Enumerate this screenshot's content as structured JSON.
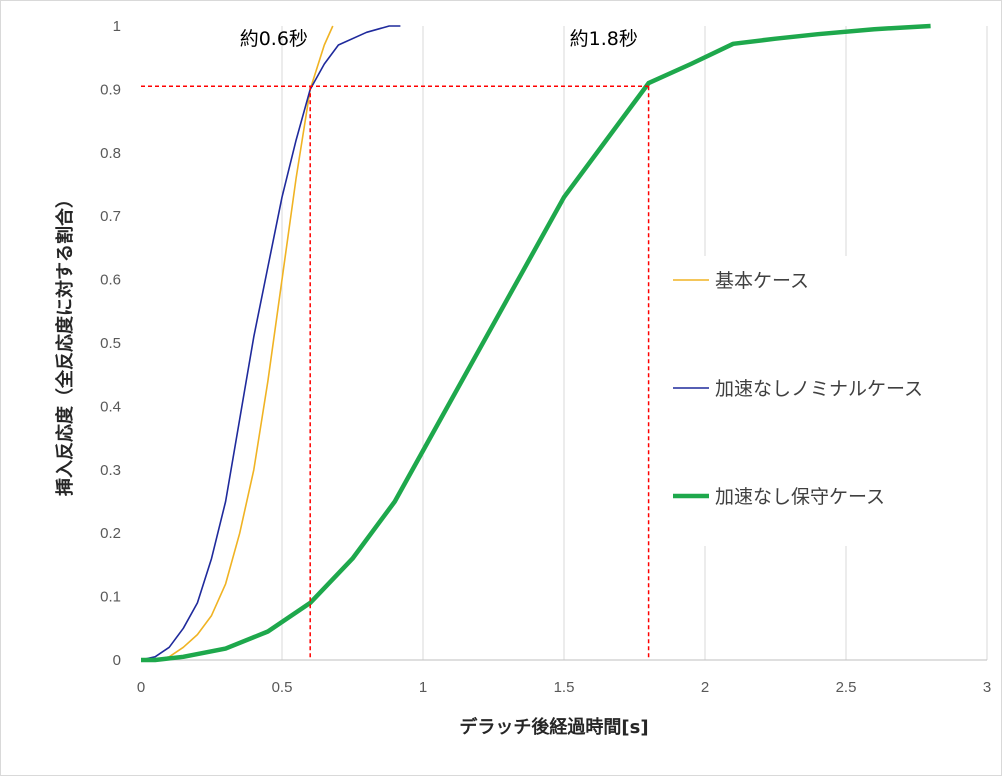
{
  "chart_data": {
    "type": "line",
    "xlabel": "デラッチ後経過時間[s]",
    "ylabel": "挿入反応度（全反応度に対する割合）",
    "xlim": [
      0,
      3
    ],
    "ylim": [
      0,
      1
    ],
    "xticks": [
      0,
      0.5,
      1,
      1.5,
      2,
      2.5,
      3
    ],
    "xtick_labels": [
      "0",
      "0.5",
      "1",
      "1.5",
      "2",
      "2.5",
      "3"
    ],
    "yticks": [
      0,
      0.1,
      0.2,
      0.3,
      0.4,
      0.5,
      0.6,
      0.7,
      0.8,
      0.9,
      1
    ],
    "ytick_labels": [
      "0",
      "0.1",
      "0.2",
      "0.3",
      "0.4",
      "0.5",
      "0.6",
      "0.7",
      "0.8",
      "0.9",
      "1"
    ],
    "grid": "vertical",
    "legend_position": "right",
    "series": [
      {
        "name": "基本ケース",
        "color": "#f0b323",
        "width": 1.6,
        "x": [
          0,
          0.05,
          0.1,
          0.15,
          0.2,
          0.25,
          0.3,
          0.35,
          0.4,
          0.45,
          0.5,
          0.55,
          0.6,
          0.65,
          0.68
        ],
        "y": [
          0,
          0,
          0.005,
          0.02,
          0.04,
          0.07,
          0.12,
          0.2,
          0.3,
          0.44,
          0.6,
          0.76,
          0.9,
          0.97,
          1.0
        ]
      },
      {
        "name": "加速なしノミナルケース",
        "color": "#1f2a9c",
        "width": 1.6,
        "x": [
          0,
          0.05,
          0.1,
          0.15,
          0.2,
          0.25,
          0.3,
          0.35,
          0.4,
          0.45,
          0.5,
          0.55,
          0.6,
          0.65,
          0.7,
          0.8,
          0.88,
          0.92
        ],
        "y": [
          0,
          0.005,
          0.02,
          0.05,
          0.09,
          0.16,
          0.25,
          0.38,
          0.51,
          0.62,
          0.73,
          0.82,
          0.9,
          0.94,
          0.97,
          0.99,
          1.0,
          1.0
        ]
      },
      {
        "name": "加速なし保守ケース",
        "color": "#1ea84c",
        "width": 4.5,
        "x": [
          0,
          0.05,
          0.15,
          0.3,
          0.45,
          0.6,
          0.75,
          0.9,
          1.05,
          1.2,
          1.35,
          1.5,
          1.65,
          1.8,
          1.95,
          2.1,
          2.25,
          2.4,
          2.6,
          2.8
        ],
        "y": [
          0,
          0,
          0.005,
          0.018,
          0.045,
          0.09,
          0.16,
          0.25,
          0.37,
          0.49,
          0.61,
          0.73,
          0.82,
          0.91,
          0.94,
          0.972,
          0.98,
          0.987,
          0.995,
          1.0
        ]
      }
    ],
    "reference_lines": [
      {
        "color": "#ff0000",
        "points": [
          [
            0,
            0.905
          ],
          [
            1.8,
            0.905
          ]
        ]
      },
      {
        "color": "#ff0000",
        "points": [
          [
            0.6,
            0.905
          ],
          [
            0.6,
            0
          ]
        ]
      },
      {
        "color": "#ff0000",
        "points": [
          [
            1.8,
            0.905
          ],
          [
            1.8,
            0
          ]
        ]
      }
    ],
    "annotations": [
      {
        "text": "約0.6秒",
        "x": 0.35,
        "y": 0.97
      },
      {
        "text": "約1.8秒",
        "x": 1.52,
        "y": 0.97
      }
    ]
  }
}
